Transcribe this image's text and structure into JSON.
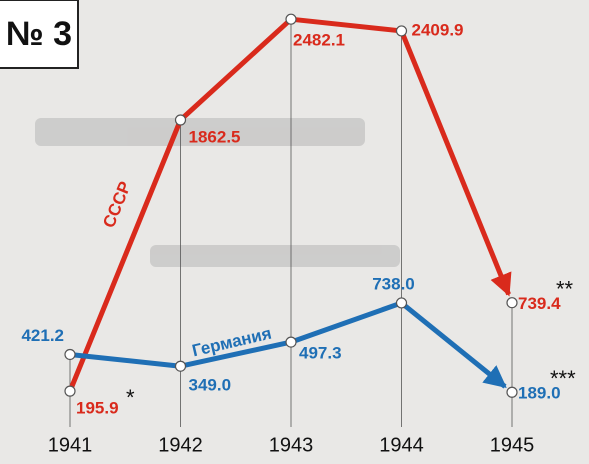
{
  "chart_data": {
    "type": "line",
    "title": "№ 3",
    "categories": [
      "1941",
      "1942",
      "1943",
      "1944",
      "1945"
    ],
    "ylim": [
      0,
      2600
    ],
    "series": [
      {
        "name": "СССР",
        "color": "#d92a1c",
        "values": [
          195.9,
          1862.5,
          2482.1,
          2409.9,
          739.4
        ],
        "value_labels": [
          "195.9",
          "1862.5",
          "2482.1",
          "2409.9",
          "739.4"
        ]
      },
      {
        "name": "Германия",
        "color": "#1f6fb5",
        "values": [
          421.2,
          349.0,
          497.3,
          738.0,
          189.0
        ],
        "value_labels": [
          "421.2",
          "349.0",
          "497.3",
          "738.0",
          "189.0"
        ]
      }
    ],
    "annotations": [
      "*",
      "**",
      "***"
    ]
  }
}
